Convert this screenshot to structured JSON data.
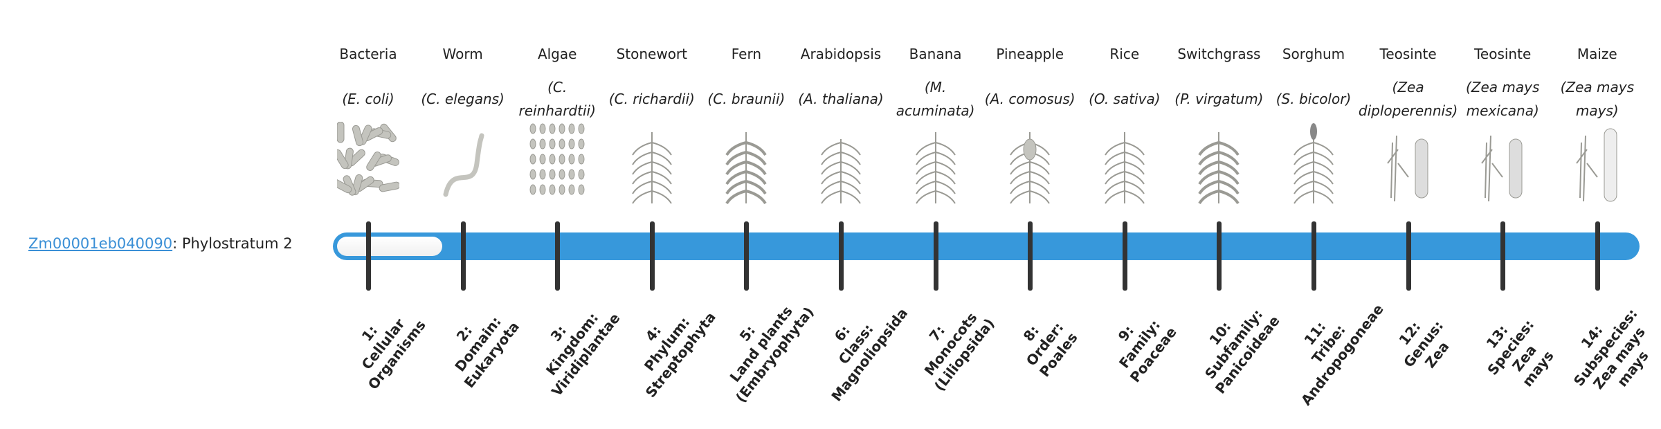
{
  "gene": {
    "id": "Zm00001eb040090",
    "separator": ": ",
    "phylostratum": "Phylostratum 2",
    "phylostratum_value": 2
  },
  "colors": {
    "bar": "#3798db",
    "tick": "#333333",
    "link": "#3a8fd6"
  },
  "strata": [
    {
      "common": "Bacteria",
      "scientific": "(E. coli)",
      "icon": "bacteria-illustration",
      "label": [
        "1:",
        "Cellular",
        "Organisms"
      ]
    },
    {
      "common": "Worm",
      "scientific": "(C. elegans)",
      "icon": "worm-illustration",
      "label": [
        "2:",
        "Domain:",
        "Eukaryota"
      ]
    },
    {
      "common": "Algae",
      "scientific": "(C. reinhardtii)",
      "icon": "algae-illustration",
      "label": [
        "3:",
        "Kingdom:",
        "Viridiplantae"
      ]
    },
    {
      "common": "Stonewort",
      "scientific": "(C. richardii)",
      "icon": "stonewort-illustration",
      "label": [
        "4:",
        "Phylum:",
        "Streptophyta"
      ]
    },
    {
      "common": "Fern",
      "scientific": "(C. braunii)",
      "icon": "fern-illustration",
      "label": [
        "5:",
        "Land plants",
        "(Embryophyta)"
      ]
    },
    {
      "common": "Arabidopsis",
      "scientific": "(A. thaliana)",
      "icon": "arabidopsis-illustration",
      "label": [
        "6:",
        "Class:",
        "Magnoliopsida"
      ]
    },
    {
      "common": "Banana",
      "scientific": "(M. acuminata)",
      "icon": "banana-illustration",
      "label": [
        "7:",
        "Monocots",
        "(Liliopsida)"
      ]
    },
    {
      "common": "Pineapple",
      "scientific": "(A. comosus)",
      "icon": "pineapple-illustration",
      "label": [
        "8:",
        "Order:",
        "Poales"
      ]
    },
    {
      "common": "Rice",
      "scientific": "(O. sativa)",
      "icon": "rice-illustration",
      "label": [
        "9:",
        "Family:",
        "Poaceae"
      ]
    },
    {
      "common": "Switchgrass",
      "scientific": "(P. virgatum)",
      "icon": "switchgrass-illustration",
      "label": [
        "10:",
        "Subfamily:",
        "Panicoideae"
      ]
    },
    {
      "common": "Sorghum",
      "scientific": "(S. bicolor)",
      "icon": "sorghum-illustration",
      "label": [
        "11:",
        "Tribe:",
        "Andropogoneae"
      ]
    },
    {
      "common": "Teosinte",
      "scientific": "(Zea diploperennis)",
      "icon": "teosinte-illustration",
      "label": [
        "12:",
        "Genus:",
        "Zea"
      ]
    },
    {
      "common": "Teosinte",
      "scientific": "(Zea mays mexicana)",
      "icon": "teosinte-mexicana-illustration",
      "label": [
        "13:",
        "Species:",
        "Zea",
        "mays"
      ]
    },
    {
      "common": "Maize",
      "scientific": "(Zea mays mays)",
      "icon": "maize-illustration",
      "label": [
        "14:",
        "Subspecies:",
        "Zea mays",
        "mays"
      ]
    }
  ]
}
